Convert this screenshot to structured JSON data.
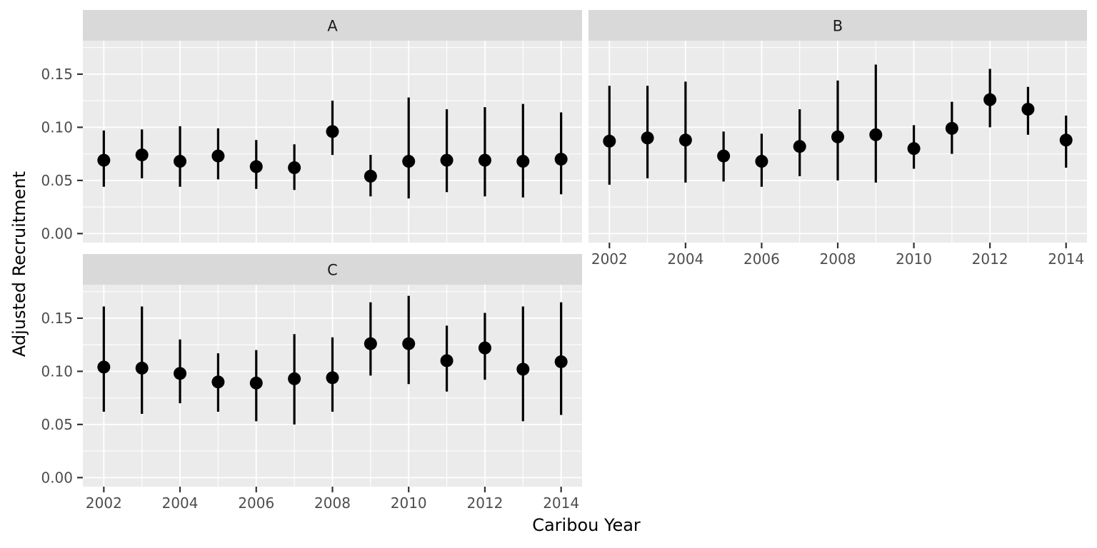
{
  "figure": {
    "x_axis_title": "Caribou Year",
    "y_axis_title": "Adjusted Recruitment"
  },
  "axis": {
    "x_ticks": [
      {
        "label": "2002",
        "value": 2002
      },
      {
        "label": "2004",
        "value": 2004
      },
      {
        "label": "2006",
        "value": 2006
      },
      {
        "label": "2008",
        "value": 2008
      },
      {
        "label": "2010",
        "value": 2010
      },
      {
        "label": "2012",
        "value": 2012
      },
      {
        "label": "2014",
        "value": 2014
      }
    ],
    "y_ticks": [
      {
        "label": "0.15",
        "value": 0.15
      },
      {
        "label": "0.10",
        "value": 0.1
      },
      {
        "label": "0.05",
        "value": 0.05
      },
      {
        "label": "0.00",
        "value": 0.0
      }
    ]
  },
  "style": {
    "panel_bg": "#EBEBEB",
    "strip_bg": "#D9D9D9",
    "grid_color": "#FFFFFF",
    "point_color": "#000000",
    "tick_label_color": "#4D4D4D",
    "strip_text_color": "#1A1A1A",
    "tick_mark_color": "#333333"
  },
  "chart_data": {
    "type": "scatter",
    "subtype": "pointrange-errorbar",
    "title": "",
    "xlabel": "Caribou Year",
    "ylabel": "Adjusted Recruitment",
    "x": [
      2002,
      2003,
      2004,
      2005,
      2006,
      2007,
      2008,
      2009,
      2010,
      2011,
      2012,
      2013,
      2014
    ],
    "x_axis_breaks": [
      2002,
      2004,
      2006,
      2008,
      2010,
      2012,
      2014
    ],
    "y_axis_breaks": [
      0.0,
      0.05,
      0.1,
      0.15
    ],
    "y_minor_breaks": [
      0.025,
      0.075,
      0.125,
      0.175
    ],
    "x_minor_breaks": [
      2003,
      2005,
      2007,
      2009,
      2011,
      2013
    ],
    "xlim": [
      2001.45,
      2014.55
    ],
    "ylim": [
      -0.0085,
      0.1815
    ],
    "grid": "on",
    "legend": "none",
    "facets": [
      {
        "label": "A",
        "estimate": [
          0.069,
          0.074,
          0.068,
          0.073,
          0.063,
          0.062,
          0.096,
          0.054,
          0.068,
          0.069,
          0.069,
          0.068,
          0.07
        ],
        "lower": [
          0.044,
          0.052,
          0.044,
          0.051,
          0.042,
          0.041,
          0.074,
          0.035,
          0.033,
          0.039,
          0.035,
          0.034,
          0.037
        ],
        "upper": [
          0.097,
          0.098,
          0.101,
          0.099,
          0.088,
          0.084,
          0.125,
          0.074,
          0.128,
          0.117,
          0.119,
          0.122,
          0.114
        ]
      },
      {
        "label": "B",
        "estimate": [
          0.087,
          0.09,
          0.088,
          0.073,
          0.068,
          0.082,
          0.091,
          0.093,
          0.08,
          0.099,
          0.126,
          0.117,
          0.088
        ],
        "lower": [
          0.046,
          0.052,
          0.048,
          0.049,
          0.044,
          0.054,
          0.05,
          0.048,
          0.061,
          0.075,
          0.1,
          0.093,
          0.062
        ],
        "upper": [
          0.139,
          0.139,
          0.143,
          0.096,
          0.094,
          0.117,
          0.144,
          0.159,
          0.102,
          0.124,
          0.155,
          0.138,
          0.111
        ]
      },
      {
        "label": "C",
        "estimate": [
          0.104,
          0.103,
          0.098,
          0.09,
          0.089,
          0.093,
          0.094,
          0.126,
          0.126,
          0.11,
          0.122,
          0.102,
          0.109
        ],
        "lower": [
          0.062,
          0.06,
          0.07,
          0.062,
          0.053,
          0.05,
          0.062,
          0.096,
          0.088,
          0.081,
          0.092,
          0.053,
          0.059
        ],
        "upper": [
          0.161,
          0.161,
          0.13,
          0.117,
          0.12,
          0.135,
          0.132,
          0.165,
          0.171,
          0.143,
          0.155,
          0.161,
          0.165
        ]
      }
    ]
  }
}
